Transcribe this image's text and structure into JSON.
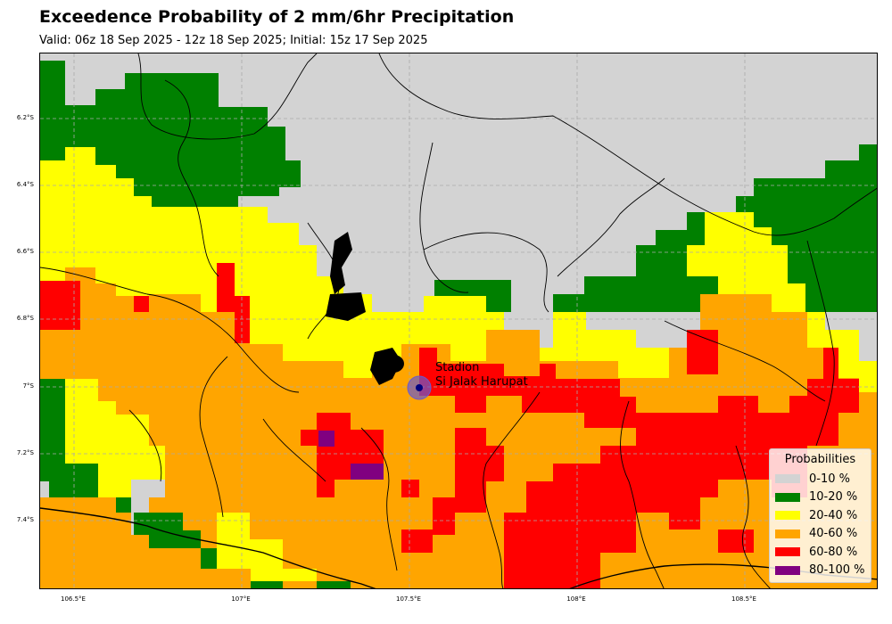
{
  "title": "Exceedence Probability of 2 mm/6hr Precipitation",
  "subtitle": "Valid: 06z 18 Sep 2025 - 12z 18 Sep 2025; Initial: 15z 17 Sep 2025",
  "axes": {
    "lon_ticks": [
      "106.5°E",
      "107°E",
      "107.5°E",
      "108°E",
      "108.5°E"
    ],
    "lat_ticks": [
      "6.2°S",
      "6.4°S",
      "6.6°S",
      "6.8°S",
      "7°S",
      "7.2°S",
      "7.4°S"
    ],
    "grid": true,
    "grid_style": "dashed"
  },
  "station": {
    "line1": "Stadion",
    "line2": "Si Jalak Harupat",
    "lon": 107.52,
    "lat": -7.0,
    "marker_color": "#6a5acd"
  },
  "legend": {
    "title": "Probabilities",
    "placement": "bottom-right",
    "entries": [
      {
        "label": "0-10 %",
        "color": "#d3d3d3"
      },
      {
        "label": "10-20 %",
        "color": "#008000"
      },
      {
        "label": "20-40 %",
        "color": "#ffff00"
      },
      {
        "label": "40-60 %",
        "color": "#ffa500"
      },
      {
        "label": "60-80 %",
        "color": "#ff0000"
      },
      {
        "label": "80-100 %",
        "color": "#800080"
      }
    ]
  },
  "colors": {
    "bin0": "#d3d3d3",
    "bin1": "#008000",
    "bin2": "#ffff00",
    "bin3": "#ffa500",
    "bin4": "#ff0000",
    "bin5": "#800080"
  }
}
